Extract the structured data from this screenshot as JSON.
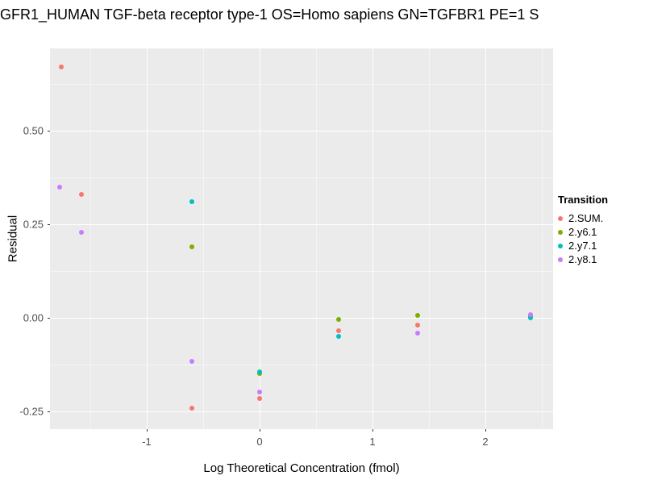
{
  "title": "GFR1_HUMAN TGF-beta receptor type-1 OS=Homo sapiens GN=TGFBR1 PE=1 S",
  "legend": {
    "title": "Transition",
    "entries": [
      {
        "label": "2.SUM.",
        "color": "#F8766D"
      },
      {
        "label": "2.y6.1",
        "color": "#7CAE00"
      },
      {
        "label": "2.y7.1",
        "color": "#00BFC4"
      },
      {
        "label": "2.y8.1",
        "color": "#C77CFF"
      }
    ]
  },
  "chart_data": {
    "type": "scatter",
    "title": "GFR1_HUMAN TGF-beta receptor type-1 OS=Homo sapiens GN=TGFBR1 PE=1 S",
    "xlabel": "Log Theoretical Concentration (fmol)",
    "ylabel": "Residual",
    "xlim": [
      -1.857,
      2.6
    ],
    "ylim": [
      -0.297,
      0.72
    ],
    "grid": "on",
    "legend_position": "right",
    "panel_background": "#EBEBEB",
    "x_tick_values": [
      -1,
      0,
      1,
      2
    ],
    "x_tick_labels": [
      "-1",
      "0",
      "1",
      "2"
    ],
    "y_tick_values": [
      -0.25,
      0,
      0.25,
      0.5
    ],
    "y_tick_labels": [
      "-0.25",
      "0.00",
      "0.25",
      "0.50"
    ],
    "x_minor_ticks": [
      -1.5,
      -0.5,
      0.5,
      1.5,
      2.5
    ],
    "y_minor_ticks": [
      -0.125,
      0.125,
      0.375,
      0.625
    ],
    "series": [
      {
        "name": "2.SUM.",
        "color": "#F8766D",
        "points": [
          [
            -1.76,
            0.67
          ],
          [
            -1.58,
            0.33
          ],
          [
            -0.6,
            -0.24
          ],
          [
            0,
            -0.215
          ],
          [
            0.7,
            -0.035
          ],
          [
            1.4,
            -0.02
          ],
          [
            2.4,
            0.003
          ]
        ]
      },
      {
        "name": "2.y6.1",
        "color": "#7CAE00",
        "points": [
          [
            -0.6,
            0.19
          ],
          [
            0,
            -0.148
          ],
          [
            0.7,
            -0.005
          ],
          [
            1.4,
            0.007
          ],
          [
            2.4,
            0.005
          ]
        ]
      },
      {
        "name": "2.y7.1",
        "color": "#00BFC4",
        "points": [
          [
            -0.6,
            0.31
          ],
          [
            0,
            -0.145
          ],
          [
            0.7,
            -0.05
          ],
          [
            2.4,
            0.0
          ]
        ]
      },
      {
        "name": "2.y8.1",
        "color": "#C77CFF",
        "points": [
          [
            -1.77,
            0.35
          ],
          [
            -1.58,
            0.228
          ],
          [
            -0.6,
            -0.115
          ],
          [
            0,
            -0.198
          ],
          [
            1.4,
            -0.04
          ],
          [
            2.4,
            0.01
          ]
        ]
      }
    ]
  }
}
